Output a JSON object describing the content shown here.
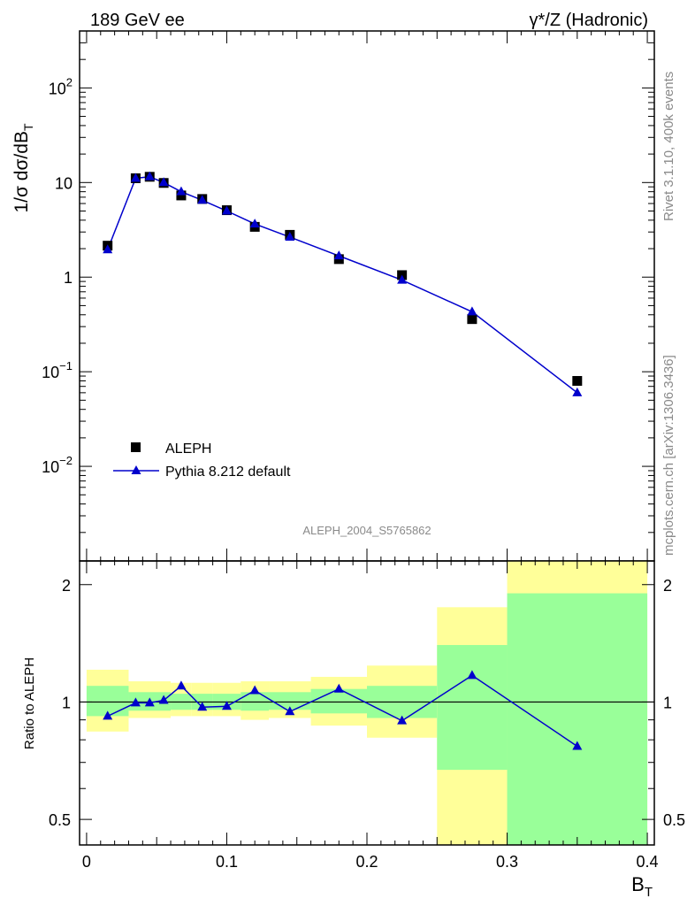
{
  "header": {
    "left_title": "189 GeV ee",
    "right_title": "γ*/Z (Hadronic)"
  },
  "side_text": {
    "rivet": "Rivet 3.1.10,  400k events",
    "site": "mcplots.cern.ch [arXiv:1306.3436]"
  },
  "watermark": "ALEPH_2004_S5765862",
  "colors": {
    "data": "#000000",
    "mc": "#0000cc",
    "band_inner": "#99ff99",
    "band_outer": "#ffff99"
  },
  "chart_data": [
    {
      "type": "scatter",
      "panel": "main",
      "title": "",
      "ylabel_parts": [
        "1/σ  dσ/dB",
        "T"
      ],
      "xlabel": "",
      "yscale": "log",
      "ylim": [
        0.001,
        400
      ],
      "xlim": [
        -0.005,
        0.405
      ],
      "ytick_labels": [
        {
          "v": 0.01,
          "base": "10",
          "exp": "−2"
        },
        {
          "v": 0.1,
          "base": "10",
          "exp": "−1"
        },
        {
          "v": 1,
          "base": "1",
          "exp": ""
        },
        {
          "v": 10,
          "base": "10",
          "exp": ""
        },
        {
          "v": 100,
          "base": "10",
          "exp": "2"
        }
      ],
      "legend": {
        "position": "bottom-left"
      },
      "series": [
        {
          "name": "ALEPH",
          "marker": "square",
          "x": [
            0.015,
            0.035,
            0.045,
            0.055,
            0.0675,
            0.0825,
            0.1,
            0.12,
            0.145,
            0.18,
            0.225,
            0.275,
            0.35
          ],
          "values": [
            2.15,
            11.1,
            11.5,
            9.9,
            7.3,
            6.7,
            5.1,
            3.4,
            2.8,
            1.55,
            1.05,
            0.36,
            0.08
          ]
        },
        {
          "name": "Pythia 8.212 default",
          "marker": "triangle",
          "x": [
            0.015,
            0.035,
            0.045,
            0.055,
            0.0675,
            0.0825,
            0.1,
            0.12,
            0.145,
            0.18,
            0.225,
            0.275,
            0.35
          ],
          "values": [
            1.95,
            11.1,
            11.5,
            10.0,
            8.0,
            6.5,
            5.0,
            3.65,
            2.65,
            1.68,
            0.93,
            0.43,
            0.06
          ]
        }
      ]
    },
    {
      "type": "line",
      "panel": "ratio",
      "title": "",
      "ylabel": "Ratio to ALEPH",
      "xlabel_parts": [
        "B",
        "T"
      ],
      "yscale": "log",
      "ylim": [
        0.43,
        2.3
      ],
      "xlim": [
        -0.005,
        0.405
      ],
      "ytick_labels": [
        "0.5",
        "1",
        "2"
      ],
      "xtick_labels": [
        "0",
        "0.1",
        "0.2",
        "0.3",
        "0.4"
      ],
      "reference_line": 1.0,
      "bins": [
        {
          "lo": 0.0,
          "hi": 0.03,
          "outer": [
            0.84,
            1.21
          ],
          "inner": [
            0.92,
            1.1
          ]
        },
        {
          "lo": 0.03,
          "hi": 0.06,
          "outer": [
            0.91,
            1.13
          ],
          "inner": [
            0.95,
            1.06
          ]
        },
        {
          "lo": 0.06,
          "hi": 0.075,
          "outer": [
            0.92,
            1.12
          ],
          "inner": [
            0.955,
            1.05
          ]
        },
        {
          "lo": 0.075,
          "hi": 0.09,
          "outer": [
            0.92,
            1.12
          ],
          "inner": [
            0.955,
            1.05
          ]
        },
        {
          "lo": 0.09,
          "hi": 0.11,
          "outer": [
            0.92,
            1.12
          ],
          "inner": [
            0.955,
            1.05
          ]
        },
        {
          "lo": 0.11,
          "hi": 0.13,
          "outer": [
            0.9,
            1.13
          ],
          "inner": [
            0.95,
            1.06
          ]
        },
        {
          "lo": 0.13,
          "hi": 0.16,
          "outer": [
            0.91,
            1.13
          ],
          "inner": [
            0.955,
            1.06
          ]
        },
        {
          "lo": 0.16,
          "hi": 0.2,
          "outer": [
            0.87,
            1.16
          ],
          "inner": [
            0.935,
            1.08
          ]
        },
        {
          "lo": 0.2,
          "hi": 0.25,
          "outer": [
            0.81,
            1.24
          ],
          "inner": [
            0.91,
            1.1
          ]
        },
        {
          "lo": 0.25,
          "hi": 0.3,
          "outer": [
            0.0,
            1.75
          ],
          "inner": [
            0.67,
            1.4
          ]
        },
        {
          "lo": 0.3,
          "hi": 0.4,
          "outer": [
            0.0,
            3.0
          ],
          "inner": [
            0.0,
            1.9
          ]
        }
      ],
      "series": [
        {
          "name": "Pythia 8.212 default",
          "x": [
            0.015,
            0.035,
            0.045,
            0.055,
            0.0675,
            0.0825,
            0.1,
            0.12,
            0.145,
            0.18,
            0.225,
            0.275,
            0.35
          ],
          "values": [
            0.92,
            0.995,
            0.995,
            1.01,
            1.1,
            0.97,
            0.975,
            1.07,
            0.945,
            1.08,
            0.895,
            1.17,
            0.77
          ]
        }
      ]
    }
  ]
}
